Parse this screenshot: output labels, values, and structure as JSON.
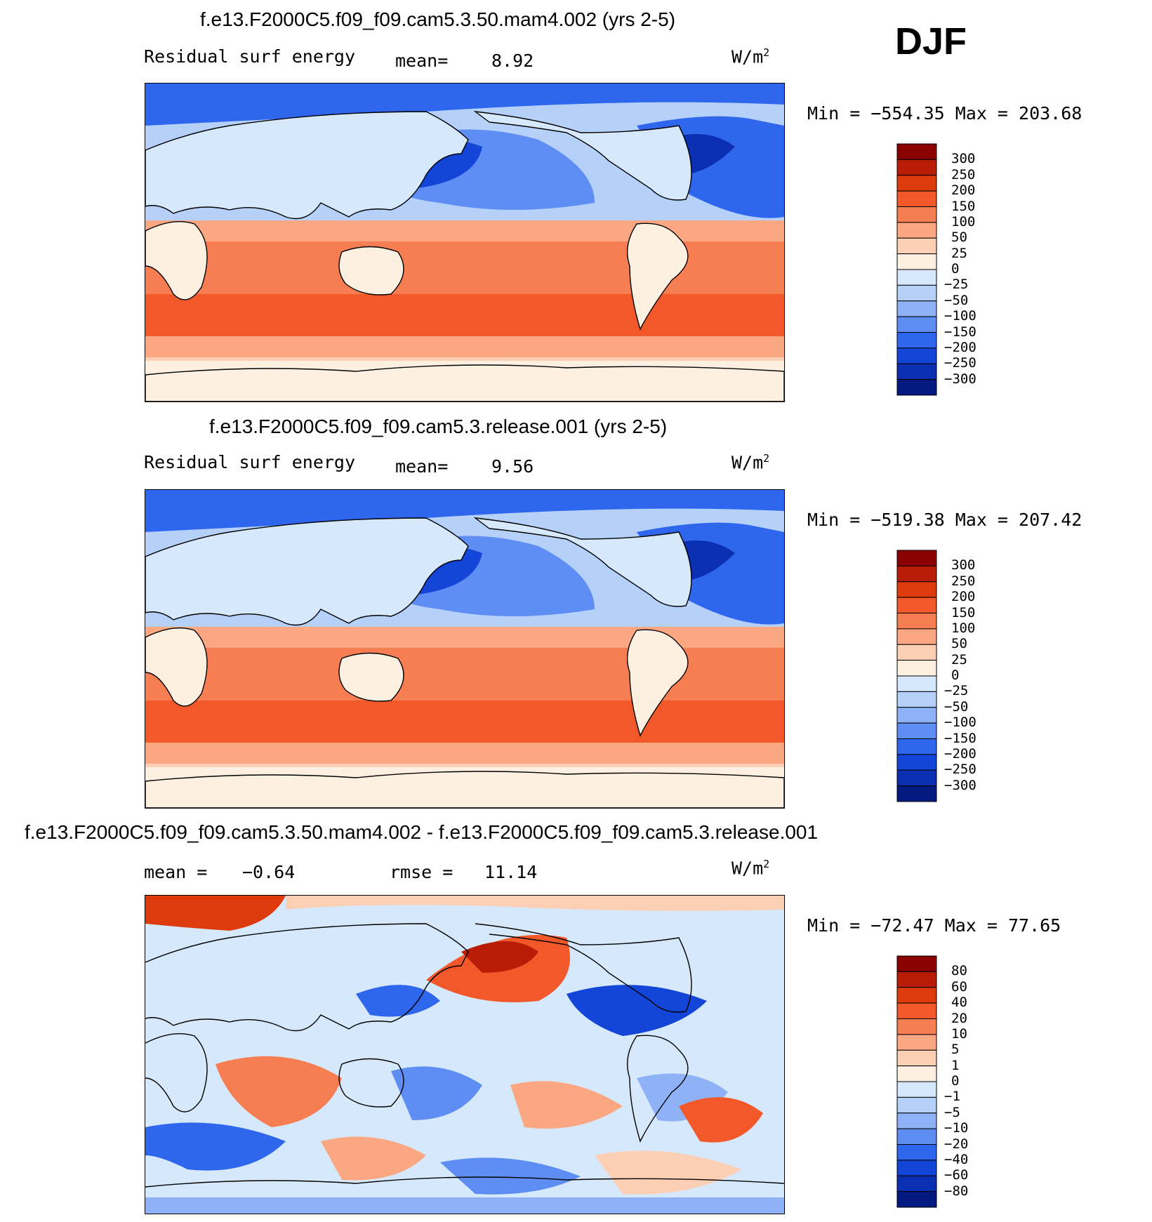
{
  "header": {
    "season": "DJF"
  },
  "panels": [
    {
      "title": "f.e13.F2000C5.f09_f09.cam5.3.50.mam4.002 (yrs 2-5)",
      "left_label": "Residual surf energy",
      "mean_text": "mean=",
      "mean_value": "8.92",
      "units_base": "W/m",
      "units_exp": "2",
      "minmax": "Min = −554.35 Max = 203.68",
      "colorbar": {
        "labels": [
          "300",
          "250",
          "200",
          "150",
          "100",
          "50",
          "25",
          "0",
          "−25",
          "−50",
          "−100",
          "−150",
          "−200",
          "−250",
          "−300"
        ],
        "colors": [
          "#8b0000",
          "#b81c05",
          "#de3b0d",
          "#f2582a",
          "#f77e52",
          "#fba882",
          "#fdd0b5",
          "#fdf0e0",
          "#d6e8fb",
          "#b5d0f9",
          "#8fb2f6",
          "#5e8ef3",
          "#2f66ee",
          "#1345d8",
          "#0a2fb0",
          "#031a80"
        ]
      }
    },
    {
      "title": "f.e13.F2000C5.f09_f09.cam5.3.release.001 (yrs 2-5)",
      "left_label": "Residual surf energy",
      "mean_text": "mean=",
      "mean_value": "9.56",
      "units_base": "W/m",
      "units_exp": "2",
      "minmax": "Min = −519.38 Max = 207.42",
      "colorbar": {
        "labels": [
          "300",
          "250",
          "200",
          "150",
          "100",
          "50",
          "25",
          "0",
          "−25",
          "−50",
          "−100",
          "−150",
          "−200",
          "−250",
          "−300"
        ],
        "colors": [
          "#8b0000",
          "#b81c05",
          "#de3b0d",
          "#f2582a",
          "#f77e52",
          "#fba882",
          "#fdd0b5",
          "#fdf0e0",
          "#d6e8fb",
          "#b5d0f9",
          "#8fb2f6",
          "#5e8ef3",
          "#2f66ee",
          "#1345d8",
          "#0a2fb0",
          "#031a80"
        ]
      }
    },
    {
      "title": "f.e13.F2000C5.f09_f09.cam5.3.50.mam4.002 - f.e13.F2000C5.f09_f09.cam5.3.release.001",
      "mean_text": "mean =",
      "mean_value": "−0.64",
      "rmse_text": "rmse =",
      "rmse_value": "11.14",
      "units_base": "W/m",
      "units_exp": "2",
      "minmax": "Min = −72.47 Max =  77.65",
      "colorbar": {
        "labels": [
          "80",
          "60",
          "40",
          "20",
          "10",
          "5",
          "1",
          "0",
          "−1",
          "−5",
          "−10",
          "−20",
          "−40",
          "−60",
          "−80"
        ],
        "colors": [
          "#8b0000",
          "#b81c05",
          "#de3b0d",
          "#f2582a",
          "#f77e52",
          "#fba882",
          "#fdd0b5",
          "#fdf0e0",
          "#d6e8fb",
          "#b5d0f9",
          "#8fb2f6",
          "#5e8ef3",
          "#2f66ee",
          "#1345d8",
          "#0a2fb0",
          "#031a80"
        ]
      }
    }
  ],
  "chart_data": [
    {
      "type": "heatmap",
      "title": "f.e13.F2000C5.f09_f09.cam5.3.50.mam4.002 (yrs 2-5)",
      "field": "Residual surf energy",
      "season": "DJF",
      "units": "W/m2",
      "mean": 8.92,
      "min": -554.35,
      "max": 203.68,
      "contour_levels": [
        -300,
        -250,
        -200,
        -150,
        -100,
        -50,
        -25,
        0,
        25,
        50,
        100,
        150,
        200,
        250,
        300
      ]
    },
    {
      "type": "heatmap",
      "title": "f.e13.F2000C5.f09_f09.cam5.3.release.001 (yrs 2-5)",
      "field": "Residual surf energy",
      "season": "DJF",
      "units": "W/m2",
      "mean": 9.56,
      "min": -519.38,
      "max": 207.42,
      "contour_levels": [
        -300,
        -250,
        -200,
        -150,
        -100,
        -50,
        -25,
        0,
        25,
        50,
        100,
        150,
        200,
        250,
        300
      ]
    },
    {
      "type": "heatmap",
      "title": "f.e13.F2000C5.f09_f09.cam5.3.50.mam4.002 - f.e13.F2000C5.f09_f09.cam5.3.release.001",
      "season": "DJF",
      "units": "W/m2",
      "mean": -0.64,
      "rmse": 11.14,
      "min": -72.47,
      "max": 77.65,
      "contour_levels": [
        -80,
        -60,
        -40,
        -20,
        -10,
        -5,
        -1,
        0,
        1,
        5,
        10,
        20,
        40,
        60,
        80
      ]
    }
  ]
}
